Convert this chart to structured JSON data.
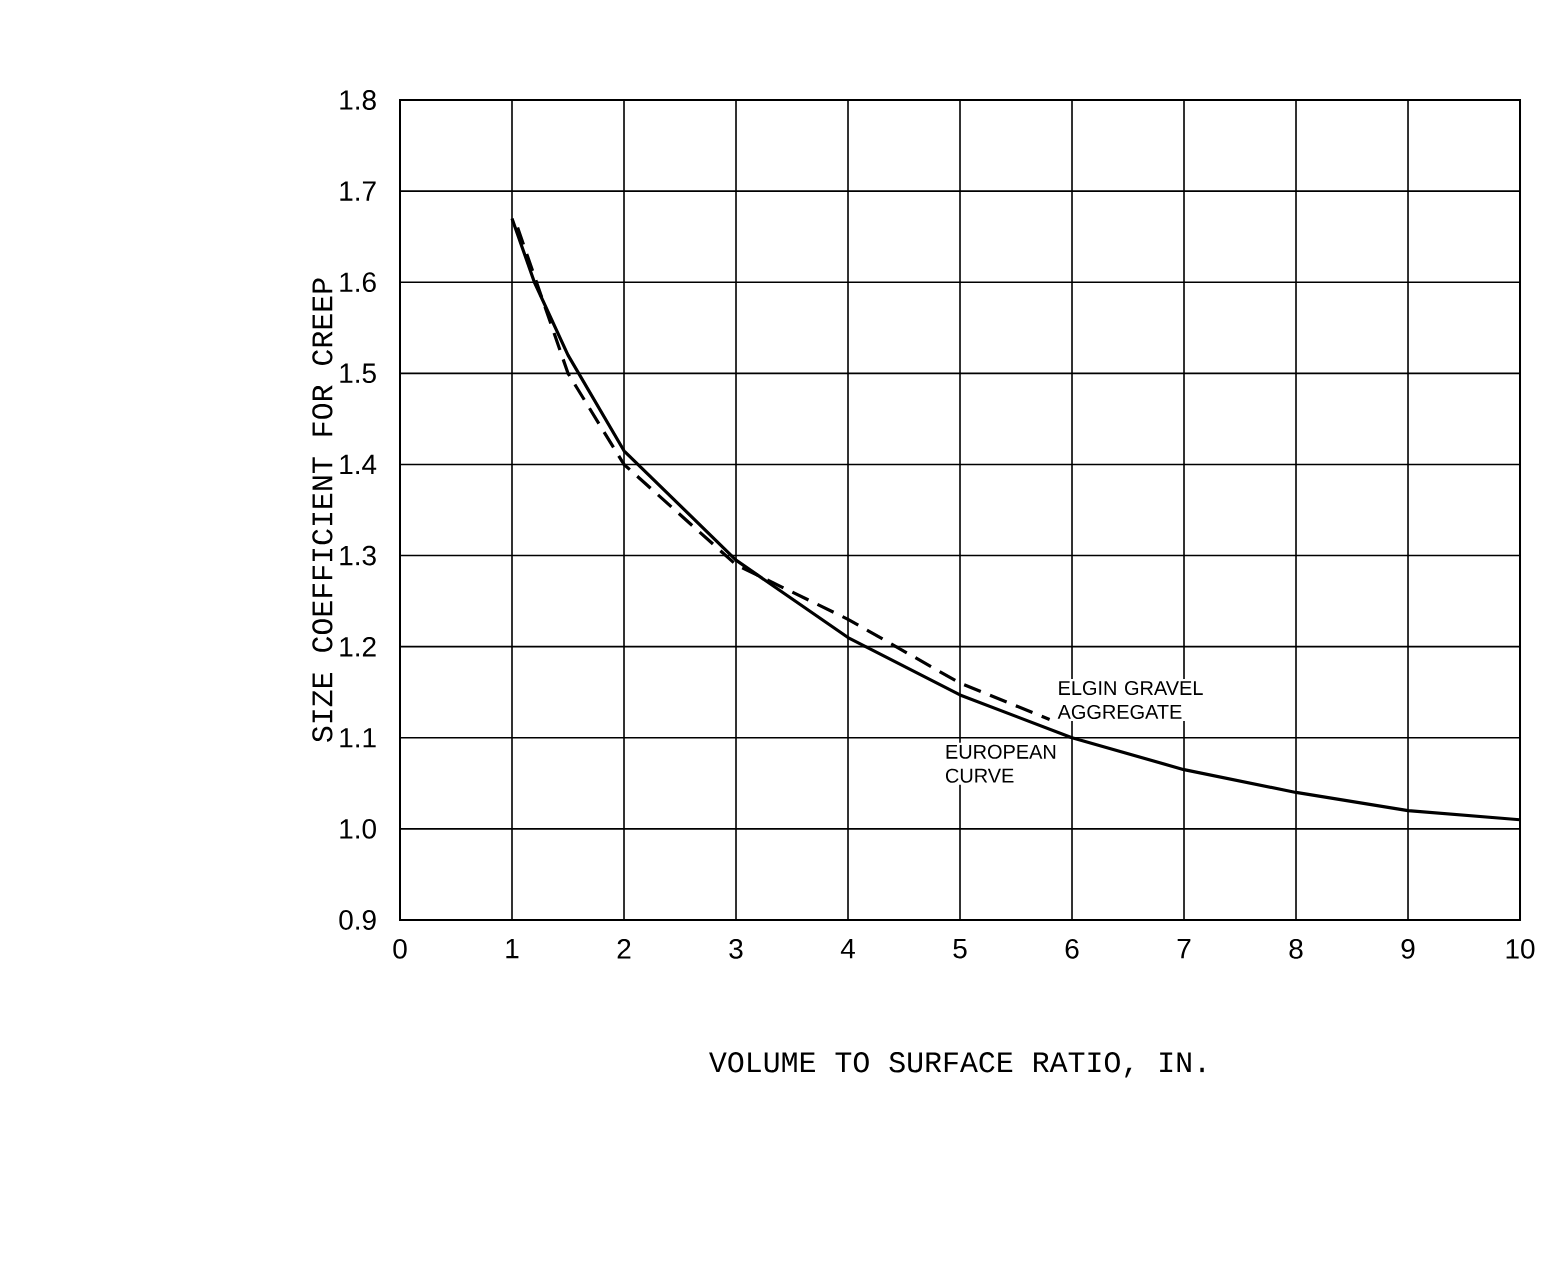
{
  "chart_data": {
    "type": "line",
    "xlabel": "VOLUME TO SURFACE RATIO, IN.",
    "ylabel": "SIZE COEFFICIENT FOR CREEP",
    "xlim": [
      0,
      10
    ],
    "xticks": [
      0,
      1,
      2,
      3,
      4,
      5,
      6,
      7,
      8,
      9,
      10
    ],
    "ylim": [
      0.9,
      1.8
    ],
    "yticks": [
      0.9,
      {
        "value": 1.0,
        "label": "1.0"
      },
      1.1,
      1.2,
      1.3,
      1.4,
      1.5,
      1.6,
      1.7,
      1.8
    ],
    "grid": true,
    "legend": false,
    "marker": "none",
    "series": [
      {
        "name": "EUROPEAN CURVE",
        "color": "#000000",
        "line_style": "solid",
        "x": [
          1,
          1.2,
          1.5,
          2,
          3,
          4,
          5,
          6,
          7,
          8,
          9,
          10
        ],
        "values": [
          1.67,
          1.6,
          1.52,
          1.415,
          1.295,
          1.21,
          1.147,
          1.1,
          1.065,
          1.04,
          1.02,
          1.01
        ]
      },
      {
        "name": "ELGIN GRAVEL AGGREGATE",
        "color": "#000000",
        "line_style": "dashed",
        "x": [
          1.05,
          1.5,
          2,
          3,
          4,
          5,
          5.8
        ],
        "values": [
          1.66,
          1.5,
          1.4,
          1.29,
          1.23,
          1.16,
          1.12
        ]
      }
    ]
  }
}
